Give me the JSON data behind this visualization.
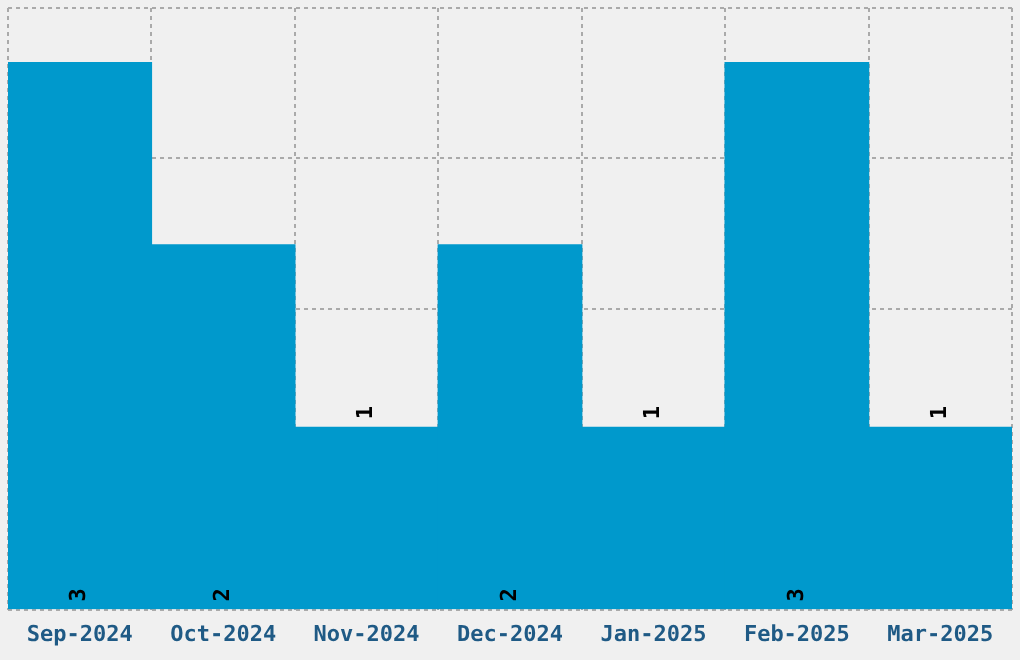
{
  "chart_data": {
    "type": "bar",
    "categories": [
      "Sep-2024",
      "Oct-2024",
      "Nov-2024",
      "Dec-2024",
      "Jan-2025",
      "Feb-2025",
      "Mar-2025"
    ],
    "values": [
      3,
      2,
      1,
      2,
      1,
      3,
      1
    ],
    "color": "#0099cc",
    "data_labels": true,
    "grid": true,
    "tick_labels": "x"
  }
}
